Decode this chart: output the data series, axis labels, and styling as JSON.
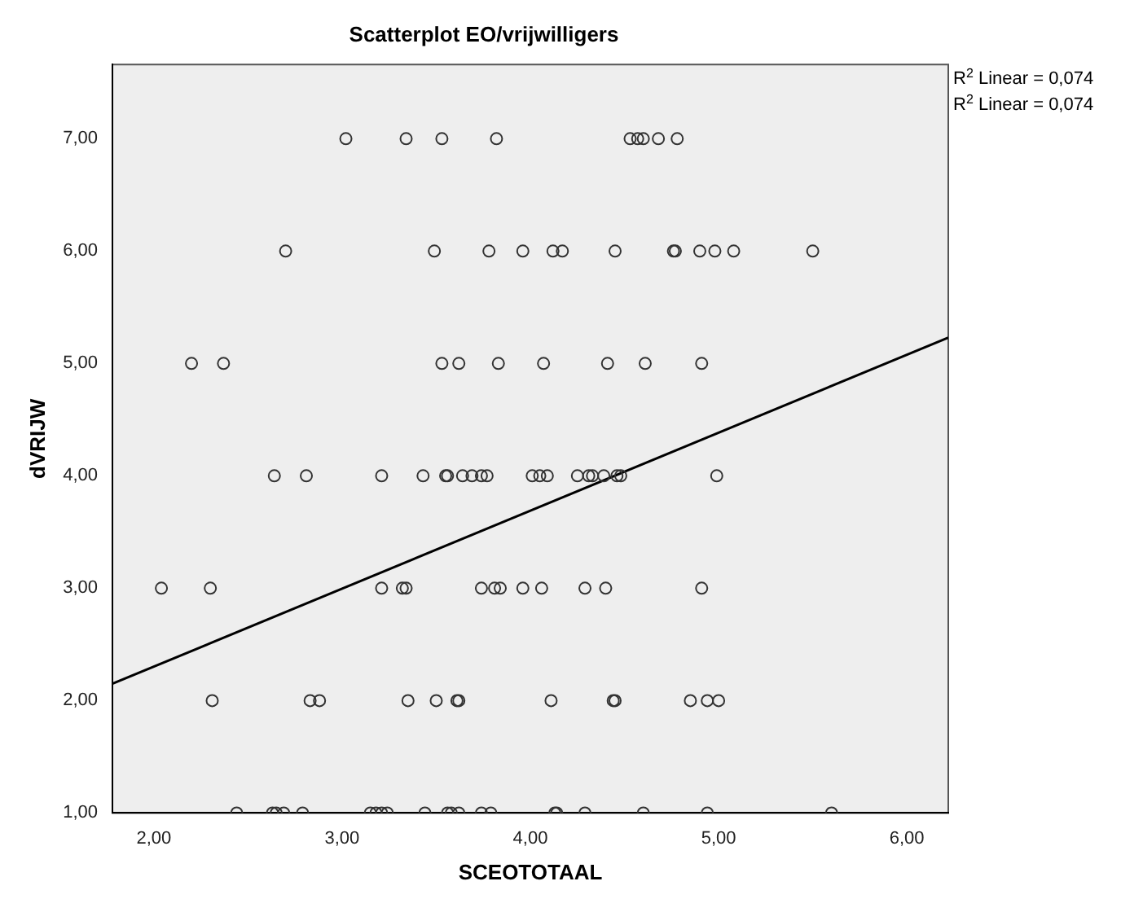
{
  "chart_data": {
    "type": "scatter",
    "title": "Scatterplot EO/vrijwilligers",
    "xlabel": "SCEOTOTAAL",
    "ylabel": "dVRIJW",
    "annotations": [
      "R$^{2}$ Linear = 0,074",
      "R$^{2}$ Linear = 0,074"
    ],
    "xlim": [
      1.78,
      6.22
    ],
    "ylim": [
      1,
      7.66
    ],
    "xticks": [
      {
        "value": 2,
        "label": "2,00"
      },
      {
        "value": 3,
        "label": "3,00"
      },
      {
        "value": 4,
        "label": "4,00"
      },
      {
        "value": 5,
        "label": "5,00"
      },
      {
        "value": 6,
        "label": "6,00"
      }
    ],
    "yticks": [
      {
        "value": 1,
        "label": "1,00"
      },
      {
        "value": 2,
        "label": "2,00"
      },
      {
        "value": 3,
        "label": "3,00"
      },
      {
        "value": 4,
        "label": "4,00"
      },
      {
        "value": 5,
        "label": "5,00"
      },
      {
        "value": 6,
        "label": "6,00"
      },
      {
        "value": 7,
        "label": "7,00"
      }
    ],
    "grid": false,
    "legend": false,
    "marker": "circle",
    "series": [
      {
        "color": "#333333",
        "x": [
          3.02,
          3.34,
          3.53,
          3.82,
          4.53,
          4.57,
          4.6,
          4.68,
          4.78,
          2.7,
          3.49,
          3.78,
          3.96,
          4.12,
          4.17,
          4.45,
          4.76,
          4.77,
          4.9,
          4.98,
          5.08,
          5.5,
          2.2,
          2.37,
          3.53,
          3.62,
          3.83,
          4.07,
          4.41,
          4.61,
          4.91,
          2.64,
          2.81,
          3.21,
          3.43,
          3.55,
          3.56,
          3.64,
          3.69,
          3.74,
          3.77,
          4.01,
          4.05,
          4.09,
          4.25,
          4.31,
          4.33,
          4.39,
          4.46,
          4.48,
          4.99,
          2.04,
          2.3,
          3.21,
          3.32,
          3.34,
          3.74,
          3.81,
          3.84,
          3.96,
          4.06,
          4.29,
          4.4,
          4.91,
          2.31,
          2.83,
          2.88,
          3.35,
          3.5,
          3.61,
          3.62,
          4.11,
          4.44,
          4.45,
          4.85,
          4.94,
          5.0,
          2.44,
          2.63,
          2.65,
          2.69,
          2.79,
          3.15,
          3.18,
          3.21,
          3.24,
          3.44,
          3.56,
          3.58,
          3.62,
          3.74,
          3.79,
          4.13,
          4.14,
          4.29,
          4.6,
          4.94,
          5.6
        ],
        "values": [
          7,
          7,
          7,
          7,
          7,
          7,
          7,
          7,
          7,
          6,
          6,
          6,
          6,
          6,
          6,
          6,
          6,
          6,
          6,
          6,
          6,
          6,
          5,
          5,
          5,
          5,
          5,
          5,
          5,
          5,
          5,
          4,
          4,
          4,
          4,
          4,
          4,
          4,
          4,
          4,
          4,
          4,
          4,
          4,
          4,
          4,
          4,
          4,
          4,
          4,
          4,
          3,
          3,
          3,
          3,
          3,
          3,
          3,
          3,
          3,
          3,
          3,
          3,
          3,
          2,
          2,
          2,
          2,
          2,
          2,
          2,
          2,
          2,
          2,
          2,
          2,
          2,
          1,
          1,
          1,
          1,
          1,
          1,
          1,
          1,
          1,
          1,
          1,
          1,
          1,
          1,
          1,
          1,
          1,
          1,
          1,
          1,
          1
        ]
      },
      {
        "type": "line",
        "color": "#000000",
        "marker": "none",
        "x": [
          1.78,
          6.22
        ],
        "values": [
          2.15,
          5.23
        ]
      }
    ]
  }
}
